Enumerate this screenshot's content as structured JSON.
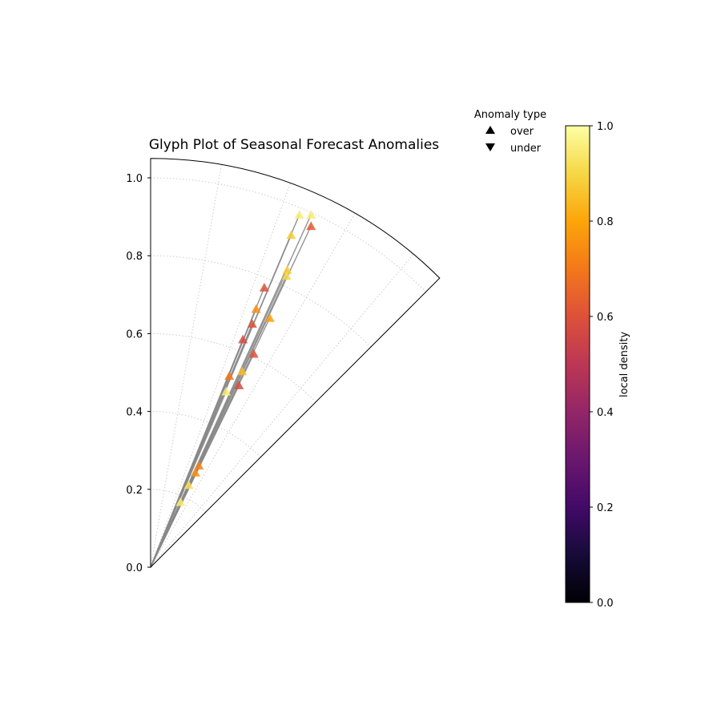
{
  "chart_data": {
    "type": "scatter",
    "projection": "polar",
    "title": "Glyph Plot of Seasonal Forecast Anomalies",
    "theta_range_deg": [
      0,
      90
    ],
    "visible_theta_deg": [
      45,
      90
    ],
    "r_range": [
      0,
      1.05
    ],
    "r_ticks": [
      0.0,
      0.2,
      0.4,
      0.6,
      0.8,
      1.0
    ],
    "r_tick_labels": [
      "0.0",
      "0.2",
      "0.4",
      "0.6",
      "0.8",
      "1.0"
    ],
    "grid": true,
    "line_color": "#888888",
    "legend": {
      "title": "Anomaly type",
      "placement": "top-right",
      "entries": [
        {
          "label": "over",
          "marker": "triangle-up"
        },
        {
          "label": "under",
          "marker": "triangle-down"
        }
      ]
    },
    "colorbar": {
      "label": "local density",
      "colormap": "inferno",
      "range": [
        0.0,
        1.0
      ],
      "ticks": [
        "0.0",
        "0.2",
        "0.4",
        "0.6",
        "0.8",
        "1.0"
      ]
    },
    "points": [
      {
        "x": 0.382,
        "y": 0.905,
        "type": "over",
        "density": 0.95
      },
      {
        "x": 0.412,
        "y": 0.905,
        "type": "over",
        "density": 0.95
      },
      {
        "x": 0.412,
        "y": 0.876,
        "type": "over",
        "density": 0.62
      },
      {
        "x": 0.361,
        "y": 0.853,
        "type": "over",
        "density": 0.88
      },
      {
        "x": 0.351,
        "y": 0.763,
        "type": "over",
        "density": 0.88
      },
      {
        "x": 0.349,
        "y": 0.748,
        "type": "over",
        "density": 0.9
      },
      {
        "x": 0.292,
        "y": 0.718,
        "type": "over",
        "density": 0.6
      },
      {
        "x": 0.271,
        "y": 0.663,
        "type": "over",
        "density": 0.75
      },
      {
        "x": 0.306,
        "y": 0.64,
        "type": "over",
        "density": 0.78
      },
      {
        "x": 0.261,
        "y": 0.625,
        "type": "over",
        "density": 0.6
      },
      {
        "x": 0.237,
        "y": 0.585,
        "type": "over",
        "density": 0.58
      },
      {
        "x": 0.265,
        "y": 0.548,
        "type": "over",
        "density": 0.6
      },
      {
        "x": 0.235,
        "y": 0.503,
        "type": "over",
        "density": 0.85
      },
      {
        "x": 0.202,
        "y": 0.491,
        "type": "over",
        "density": 0.7
      },
      {
        "x": 0.227,
        "y": 0.467,
        "type": "over",
        "density": 0.58
      },
      {
        "x": 0.194,
        "y": 0.451,
        "type": "over",
        "density": 0.95
      },
      {
        "x": 0.124,
        "y": 0.261,
        "type": "over",
        "density": 0.72
      },
      {
        "x": 0.115,
        "y": 0.243,
        "type": "over",
        "density": 0.75
      },
      {
        "x": 0.098,
        "y": 0.211,
        "type": "over",
        "density": 0.92
      },
      {
        "x": 0.077,
        "y": 0.167,
        "type": "over",
        "density": 0.95
      }
    ]
  }
}
